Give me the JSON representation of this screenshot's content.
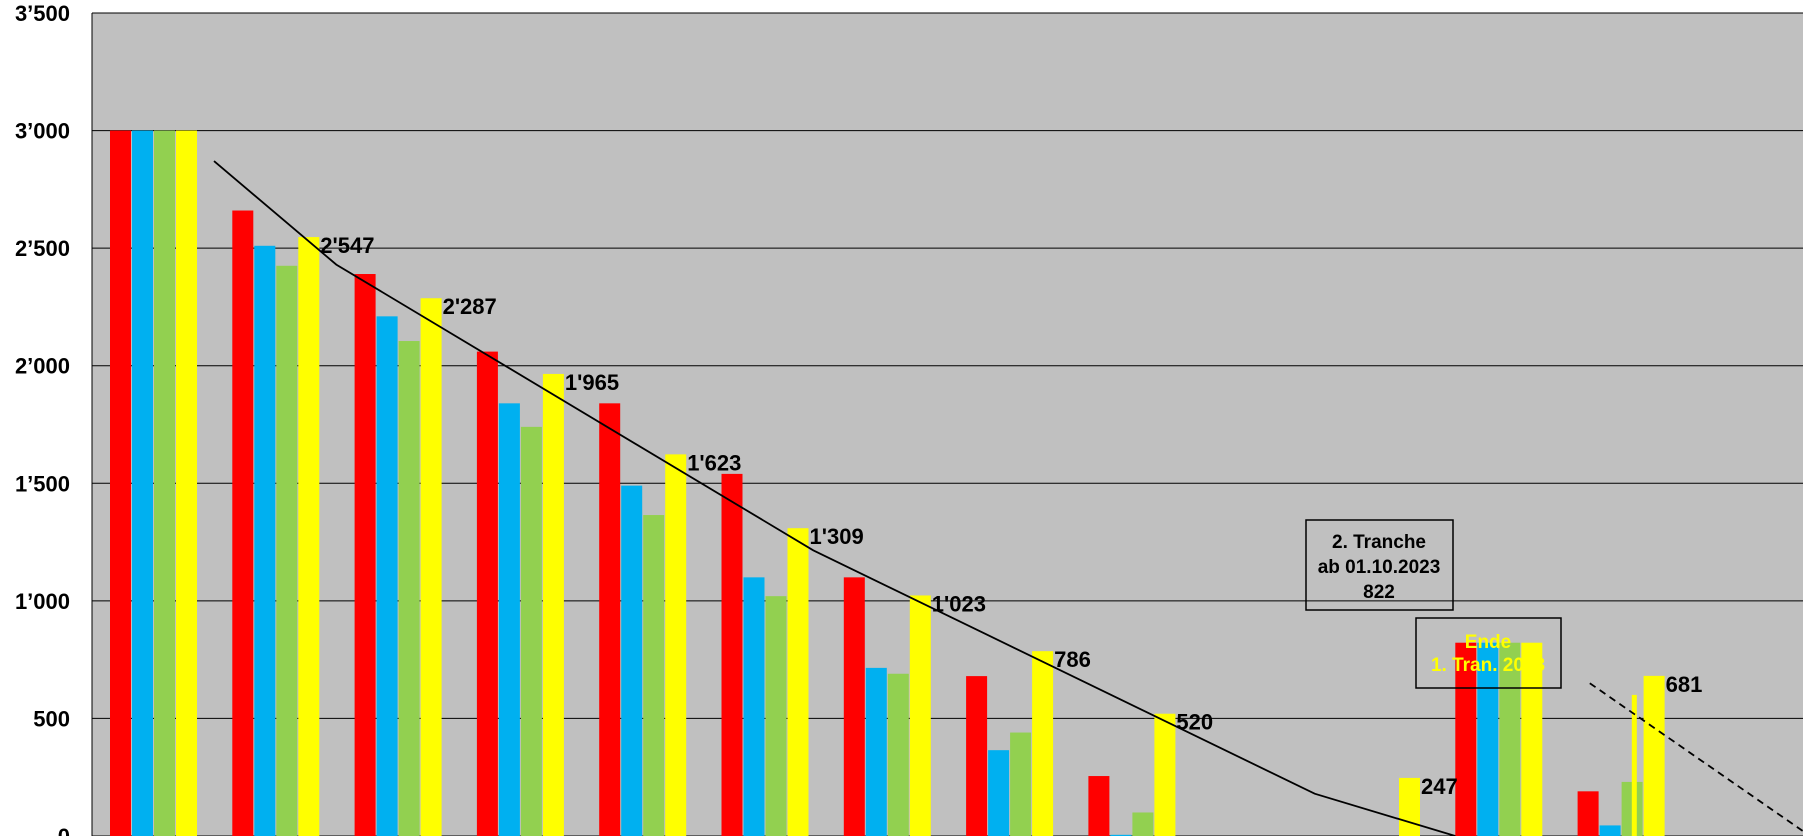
{
  "chart_data": {
    "type": "bar",
    "title": "",
    "xlabel": "",
    "ylabel": "",
    "ylim": [
      0,
      3500
    ],
    "yticks": [
      "0",
      "500",
      "1’000",
      "1’500",
      "2’000",
      "2’500",
      "3’000",
      "3’500"
    ],
    "ytick_values": [
      0,
      500,
      1000,
      1500,
      2000,
      2500,
      3000,
      3500
    ],
    "grid": true,
    "plot_background": "#c0c0c0",
    "group_count": 14,
    "series": [
      {
        "color": "#ff0000",
        "values": [
          3000,
          2660,
          2390,
          2060,
          1840,
          1540,
          1100,
          680,
          255,
          null,
          null,
          822,
          190,
          null
        ]
      },
      {
        "color": "#00b0f0",
        "values": [
          3000,
          2510,
          2210,
          1840,
          1490,
          1100,
          715,
          365,
          5,
          null,
          null,
          822,
          45,
          null
        ]
      },
      {
        "color": "#92d050",
        "values": [
          3000,
          2425,
          2105,
          1740,
          1365,
          1020,
          690,
          440,
          100,
          null,
          null,
          822,
          230,
          null
        ]
      },
      {
        "color": "#ffff00",
        "values": [
          3000,
          2547,
          2287,
          1965,
          1623,
          1309,
          1023,
          786,
          520,
          null,
          247,
          822,
          681,
          null
        ]
      }
    ],
    "data_labels": [
      {
        "group": 1,
        "text": "2'547",
        "value": 2547
      },
      {
        "group": 2,
        "text": "2'287",
        "value": 2287
      },
      {
        "group": 3,
        "text": "1'965",
        "value": 1965
      },
      {
        "group": 4,
        "text": "1'623",
        "value": 1623
      },
      {
        "group": 5,
        "text": "1'309",
        "value": 1309
      },
      {
        "group": 6,
        "text": "1'023",
        "value": 1023
      },
      {
        "group": 7,
        "text": "786",
        "value": 786
      },
      {
        "group": 8,
        "text": "520",
        "value": 520
      },
      {
        "group": 10,
        "text": "247",
        "value": 247
      },
      {
        "group": 12,
        "text": "681",
        "value": 681
      }
    ],
    "extra_marker": {
      "group": 12,
      "value": 600,
      "color": "#ffff00"
    },
    "trend_line": {
      "points": [
        [
          0.85,
          2870
        ],
        [
          1.85,
          2430
        ],
        [
          5.75,
          1215
        ],
        [
          9.85,
          180
        ],
        [
          11.0,
          0
        ]
      ],
      "color": "#000000"
    },
    "forecast_line": {
      "points": [
        [
          12.1,
          650
        ],
        [
          13.9,
          0
        ]
      ],
      "style": "dashed",
      "color": "#000000"
    },
    "annotations": [
      {
        "lines": [
          "2. Tranche",
          "ab 01.10.2023",
          "822"
        ],
        "text_color": "#000000"
      },
      {
        "lines": [
          "Ende",
          "1. Tran. 2023"
        ],
        "text_color": "#ffff00"
      }
    ]
  }
}
